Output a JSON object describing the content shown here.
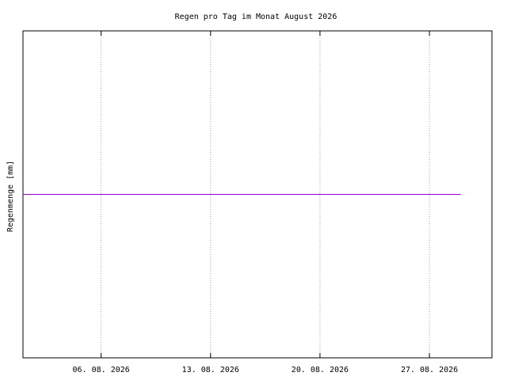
{
  "chart_data": {
    "type": "line",
    "title": "Regen pro Tag im Monat August 2026",
    "y_label": "Regenmenge [mm]",
    "x": [
      1,
      2,
      3,
      4,
      5,
      6,
      7,
      8,
      9,
      10,
      11,
      12,
      13,
      14,
      15,
      16,
      17,
      18,
      19,
      20,
      21,
      22,
      23,
      24,
      25,
      26,
      27,
      28,
      29
    ],
    "series": [
      {
        "color": "#9400d3",
        "values": [
          0,
          0,
          0,
          0,
          0,
          0,
          0,
          0,
          0,
          0,
          0,
          0,
          0,
          0,
          0,
          0,
          0,
          0,
          0,
          0,
          0,
          0,
          0,
          0,
          0,
          0,
          0,
          0,
          0
        ]
      }
    ],
    "xlim": [
      1,
      31
    ],
    "xticks": [
      {
        "value": 6,
        "label": "06. 08. 2026"
      },
      {
        "value": 13,
        "label": "13. 08. 2026"
      },
      {
        "value": 20,
        "label": "20. 08. 2026"
      },
      {
        "value": 27,
        "label": "27. 08. 2026"
      }
    ],
    "ylim": [
      -1,
      1
    ],
    "grid": true
  }
}
